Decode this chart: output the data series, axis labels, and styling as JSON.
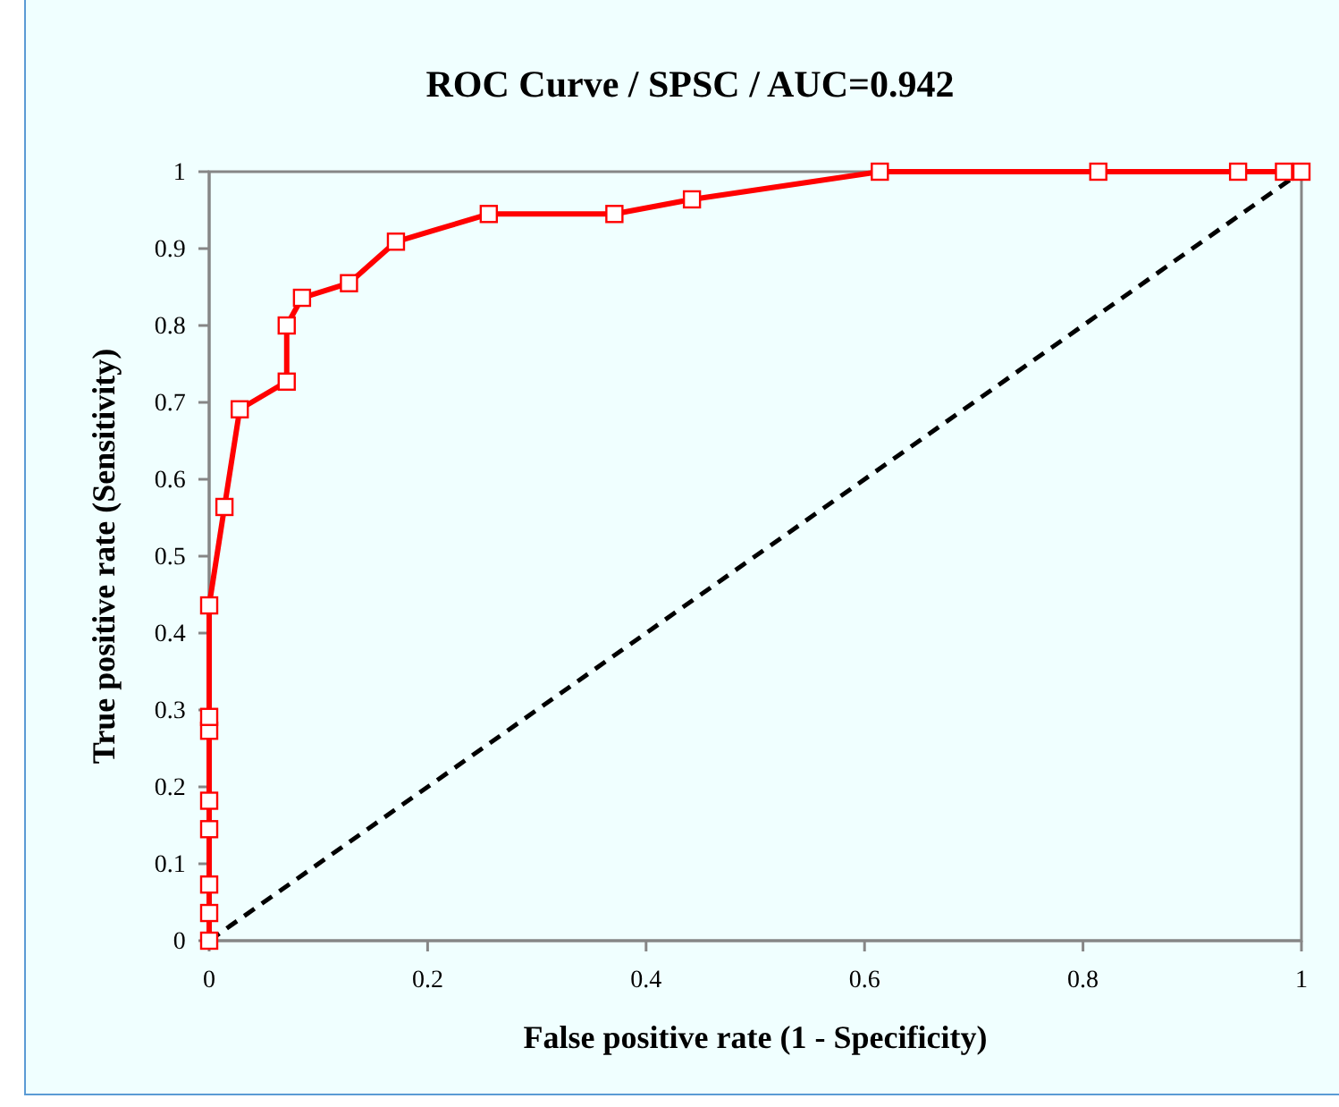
{
  "chart_data": {
    "type": "line",
    "title": "ROC Curve / SPSC / AUC=0.942",
    "xlabel": "False positive rate (1 - Specificity)",
    "ylabel": "True positive rate (Sensitivity)",
    "xlim": [
      0,
      1
    ],
    "ylim": [
      0,
      1
    ],
    "xticks": [
      0,
      0.2,
      0.4,
      0.6,
      0.8,
      1
    ],
    "yticks": [
      0,
      0.1,
      0.2,
      0.3,
      0.4,
      0.5,
      0.6,
      0.7,
      0.8,
      0.9,
      1
    ],
    "grid": false,
    "series": [
      {
        "color": "#ff0000",
        "marker": "square",
        "line_style": "solid",
        "x": [
          0,
          0,
          0,
          0,
          0,
          0,
          0,
          0,
          0.014,
          0.028,
          0.071,
          0.071,
          0.085,
          0.128,
          0.171,
          0.256,
          0.371,
          0.442,
          0.614,
          0.814,
          0.942,
          0.984,
          1
        ],
        "values": [
          0,
          0.036,
          0.073,
          0.145,
          0.182,
          0.273,
          0.291,
          0.436,
          0.564,
          0.691,
          0.727,
          0.8,
          0.836,
          0.855,
          0.909,
          0.945,
          0.945,
          0.964,
          1,
          1,
          1,
          1,
          1
        ]
      },
      {
        "color": "#000000",
        "marker": "none",
        "line_style": "dashed",
        "x": [
          0,
          1
        ],
        "values": [
          0,
          1
        ]
      }
    ]
  }
}
